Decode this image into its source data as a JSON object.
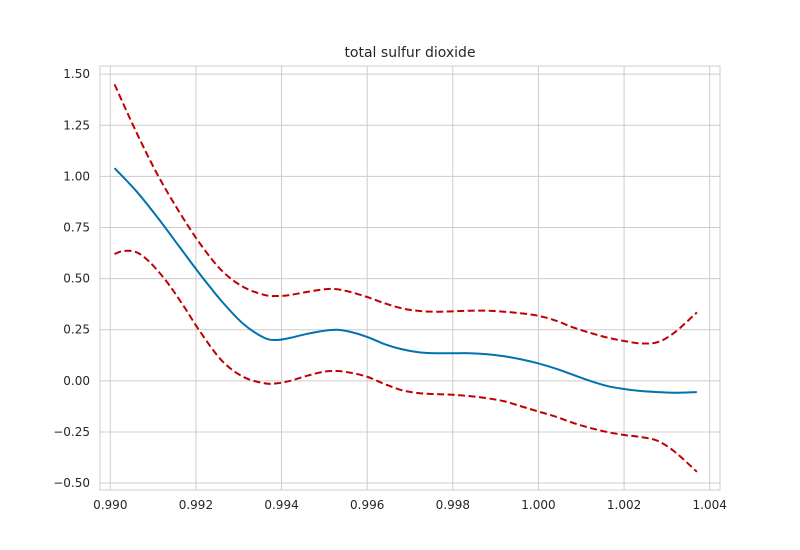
{
  "chart_data": {
    "type": "line",
    "title": "total sulfur dioxide",
    "xlabel": "",
    "ylabel": "",
    "xlim": [
      0.98976,
      1.00424
    ],
    "ylim": [
      -0.534,
      1.54
    ],
    "grid": true,
    "legend": "none",
    "xticks": [
      0.99,
      0.992,
      0.994,
      0.996,
      0.998,
      1.0,
      1.002,
      1.004
    ],
    "xtick_labels": [
      "0.990",
      "0.992",
      "0.994",
      "0.996",
      "0.998",
      "1.000",
      "1.002",
      "1.004"
    ],
    "yticks": [
      -0.5,
      -0.25,
      0.0,
      0.25,
      0.5,
      0.75,
      1.0,
      1.25,
      1.5
    ],
    "ytick_labels": [
      "−0.50",
      "−0.25",
      "0.00",
      "0.25",
      "0.50",
      "0.75",
      "1.00",
      "1.25",
      "1.50"
    ],
    "series": [
      {
        "style": "solid",
        "color": "#0072b2",
        "x": [
          0.9901,
          0.9906,
          0.9911,
          0.9916,
          0.9921,
          0.9926,
          0.9931,
          0.9936,
          0.9939,
          0.9942,
          0.9946,
          0.995,
          0.9953,
          0.9956,
          0.996,
          0.9964,
          0.9968,
          0.9972,
          0.9976,
          0.998,
          0.9984,
          0.9988,
          0.9992,
          0.9996,
          1.0,
          1.0004,
          1.0008,
          1.0012,
          1.0016,
          1.002,
          1.0024,
          1.0028,
          1.0032,
          1.0037
        ],
        "y": [
          1.04,
          0.93,
          0.8,
          0.66,
          0.52,
          0.39,
          0.28,
          0.21,
          0.2,
          0.21,
          0.23,
          0.245,
          0.25,
          0.24,
          0.215,
          0.18,
          0.155,
          0.14,
          0.135,
          0.135,
          0.135,
          0.13,
          0.12,
          0.105,
          0.085,
          0.06,
          0.03,
          0.0,
          -0.025,
          -0.04,
          -0.05,
          -0.055,
          -0.058,
          -0.055
        ]
      },
      {
        "style": "dashed",
        "color": "#c00000",
        "x": [
          0.9901,
          0.9906,
          0.9911,
          0.9916,
          0.9921,
          0.9926,
          0.9931,
          0.9936,
          0.9939,
          0.9942,
          0.9946,
          0.995,
          0.9953,
          0.9956,
          0.996,
          0.9964,
          0.9968,
          0.9972,
          0.9976,
          0.998,
          0.9984,
          0.9988,
          0.9992,
          0.9996,
          1.0,
          1.0004,
          1.0008,
          1.0012,
          1.0016,
          1.002,
          1.0024,
          1.0028,
          1.0032,
          1.0037
        ],
        "y": [
          1.45,
          1.22,
          1.01,
          0.83,
          0.67,
          0.54,
          0.46,
          0.42,
          0.415,
          0.42,
          0.435,
          0.448,
          0.448,
          0.435,
          0.41,
          0.38,
          0.355,
          0.342,
          0.338,
          0.34,
          0.343,
          0.343,
          0.338,
          0.33,
          0.318,
          0.295,
          0.262,
          0.235,
          0.212,
          0.195,
          0.183,
          0.19,
          0.24,
          0.335
        ]
      },
      {
        "style": "dashed",
        "color": "#c00000",
        "x": [
          0.9901,
          0.9903,
          0.9906,
          0.9909,
          0.9913,
          0.9917,
          0.9921,
          0.9926,
          0.9931,
          0.9936,
          0.9939,
          0.9942,
          0.9946,
          0.995,
          0.9953,
          0.9956,
          0.996,
          0.9964,
          0.9968,
          0.9972,
          0.9976,
          0.998,
          0.9984,
          0.9988,
          0.9992,
          0.9996,
          1.0,
          1.0004,
          1.0008,
          1.0012,
          1.0016,
          1.002,
          1.0024,
          1.0028,
          1.0032,
          1.0037
        ],
        "y": [
          0.62,
          0.635,
          0.63,
          0.585,
          0.49,
          0.37,
          0.24,
          0.1,
          0.02,
          -0.012,
          -0.012,
          0.0,
          0.025,
          0.045,
          0.048,
          0.04,
          0.02,
          -0.015,
          -0.045,
          -0.06,
          -0.065,
          -0.068,
          -0.075,
          -0.085,
          -0.1,
          -0.125,
          -0.15,
          -0.175,
          -0.205,
          -0.23,
          -0.25,
          -0.265,
          -0.275,
          -0.295,
          -0.35,
          -0.445
        ]
      }
    ]
  }
}
